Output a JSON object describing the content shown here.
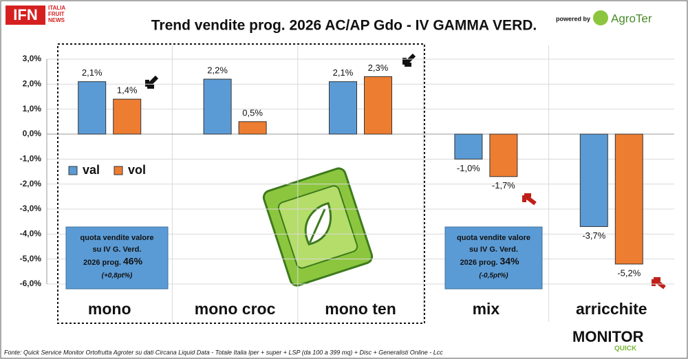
{
  "chart_data": {
    "type": "bar",
    "title": "Trend vendite prog. 2026 AC/AP Gdo - IV GAMMA VERD.",
    "categories": [
      "mono",
      "mono croc",
      "mono ten",
      "mix",
      "arricchite"
    ],
    "series": [
      {
        "name": "val",
        "color": "#5b9bd5",
        "values": [
          2.1,
          2.2,
          2.1,
          -1.0,
          -3.7
        ],
        "value_labels": [
          "2,1%",
          "2,2%",
          "2,1%",
          "-1,0%",
          "-3,7%"
        ]
      },
      {
        "name": "vol",
        "color": "#ed7d31",
        "values": [
          1.4,
          0.5,
          2.3,
          -1.7,
          -5.2
        ],
        "value_labels": [
          "1,4%",
          "0,5%",
          "2,3%",
          "-1,7%",
          "-5,2%"
        ]
      }
    ],
    "ylim": [
      -6,
      3
    ],
    "yticks": [
      {
        "value": -6,
        "label": "-6,0%"
      },
      {
        "value": -5,
        "label": "-5,0%"
      },
      {
        "value": -4,
        "label": "-4,0%"
      },
      {
        "value": -3,
        "label": "-3,0%"
      },
      {
        "value": -2,
        "label": "-2,0%"
      },
      {
        "value": -1,
        "label": "-1,0%"
      },
      {
        "value": 0,
        "label": "0,0%"
      },
      {
        "value": 1,
        "label": "1,0%"
      },
      {
        "value": 2,
        "label": "2,0%"
      },
      {
        "value": 3,
        "label": "3,0%"
      }
    ],
    "grid": true,
    "legend": "left",
    "annotations": [
      {
        "lines": [
          "quota vendite valore",
          "su IV G. Verd."
        ],
        "share_text": "2026 prog.",
        "share": "46%",
        "delta": "(+0,8pt%)"
      },
      {
        "lines": [
          "quota vendite valore",
          "su IV G. Verd."
        ],
        "share_text": "2026 prog.",
        "share": "34%",
        "delta": "(-0,5pt%)"
      }
    ],
    "source": "Fonte: Quick Service Monitor Ortofrutta Agroter su dati Circana Liquid Data - Totale Italia Iper + super + LSP (da 100 a 399 mq) + Disc + Generalisti Online - Lcc",
    "branding": {
      "ifn": "IFN",
      "ifn_sub": [
        "ITALIA",
        "FRUIT",
        "NEWS"
      ],
      "powered": "powered by",
      "agroter": "AgroTer",
      "monitor": "MONITOR",
      "quick": "QUICK"
    }
  }
}
